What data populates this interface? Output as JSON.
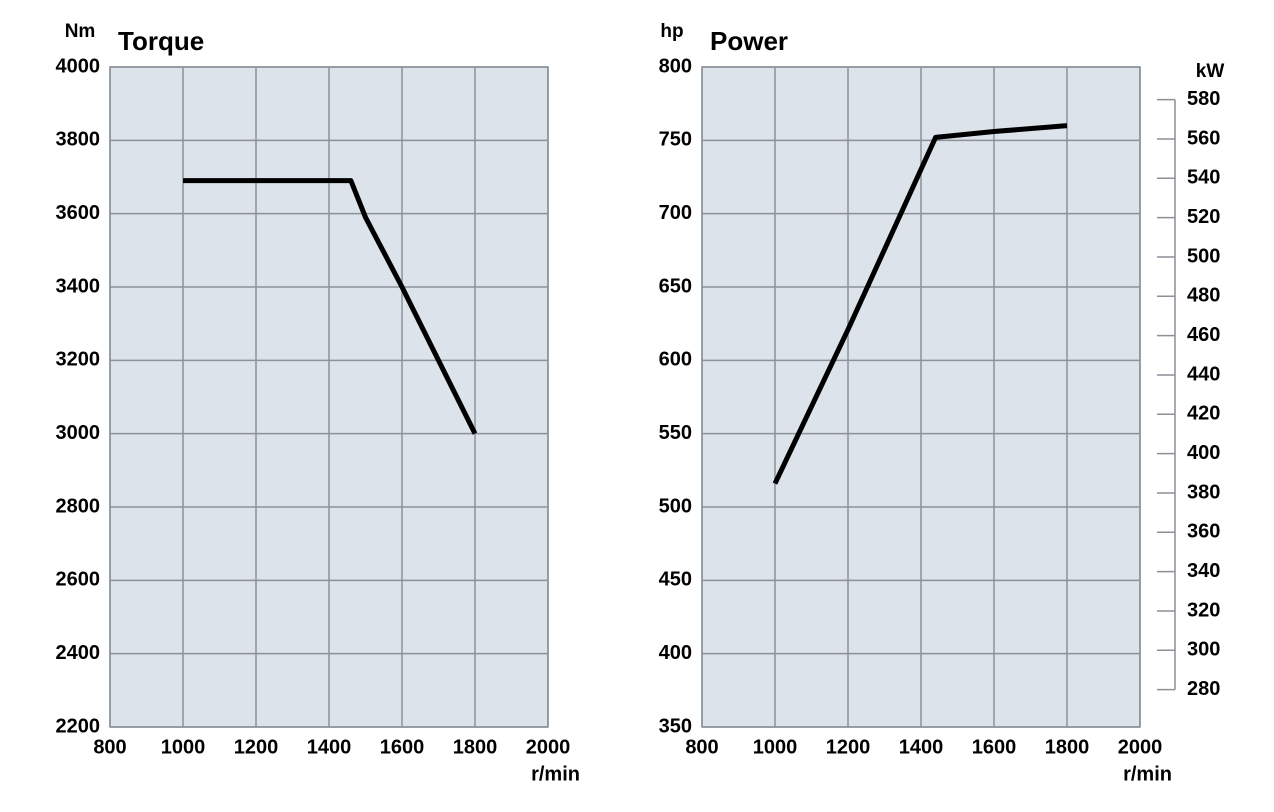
{
  "chart_data": [
    {
      "type": "line",
      "title": "Torque",
      "ylabel": "Nm",
      "xlabel": "r/min",
      "x": [
        1000,
        1460,
        1500,
        1600,
        1700,
        1800
      ],
      "series": [
        {
          "color": "#000000",
          "values": [
            3690,
            3690,
            3590,
            3400,
            3200,
            3000
          ]
        }
      ],
      "xlim": [
        800,
        2000
      ],
      "xticks": [
        800,
        1000,
        1200,
        1400,
        1600,
        1800,
        2000
      ],
      "ylim": [
        2200,
        4000
      ],
      "yticks": [
        2200,
        2400,
        2600,
        2800,
        3000,
        3200,
        3400,
        3600,
        3800,
        4000
      ],
      "grid": true
    },
    {
      "type": "line",
      "title": "Power",
      "ylabel": "hp",
      "xlabel": "r/min",
      "y2label": "kW",
      "x": [
        1000,
        1200,
        1440,
        1600,
        1800
      ],
      "series": [
        {
          "color": "#000000",
          "values": [
            516,
            621,
            752,
            756,
            760
          ]
        }
      ],
      "xlim": [
        800,
        2000
      ],
      "xticks": [
        800,
        1000,
        1200,
        1400,
        1600,
        1800,
        2000
      ],
      "ylim": [
        350,
        800
      ],
      "yticks": [
        350,
        400,
        450,
        500,
        550,
        600,
        650,
        700,
        750,
        800
      ],
      "y2lim": [
        261,
        596.6
      ],
      "y2ticks": [
        280,
        300,
        320,
        340,
        360,
        380,
        400,
        420,
        440,
        460,
        480,
        500,
        520,
        540,
        560,
        580
      ],
      "grid": true
    }
  ]
}
